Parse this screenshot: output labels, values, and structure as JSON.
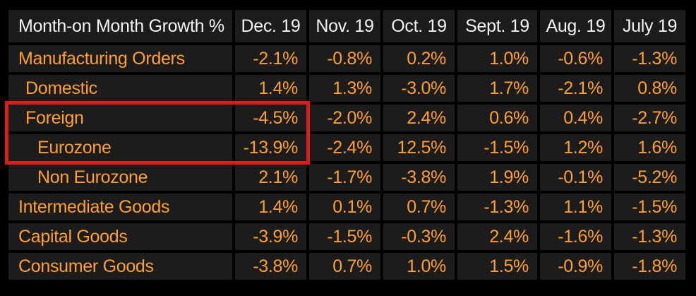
{
  "colors": {
    "page_bg": "#000000",
    "cell_bg": "#1c1c1c",
    "header_text": "#f2f2f2",
    "value_orange": "#ffa028",
    "highlight_red": "#e01b1b"
  },
  "chart_data": {
    "type": "table",
    "title": "Month-on Month Growth %",
    "columns": [
      "Dec. 19",
      "Nov. 19",
      "Oct. 19",
      "Sept. 19",
      "Aug. 19",
      "July 19"
    ],
    "rows": [
      {
        "label": "Manufacturing Orders",
        "indent": 0,
        "values": [
          "-2.1%",
          "-0.8%",
          "0.2%",
          "1.0%",
          "-0.6%",
          "-1.3%"
        ]
      },
      {
        "label": "Domestic",
        "indent": 1,
        "values": [
          "1.4%",
          "1.3%",
          "-3.0%",
          "1.7%",
          "-2.1%",
          "0.8%"
        ]
      },
      {
        "label": "Foreign",
        "indent": 1,
        "values": [
          "-4.5%",
          "-2.0%",
          "2.4%",
          "0.6%",
          "0.4%",
          "-2.7%"
        ]
      },
      {
        "label": "Eurozone",
        "indent": 2,
        "values": [
          "-13.9%",
          "-2.4%",
          "12.5%",
          "-1.5%",
          "1.2%",
          "1.6%"
        ]
      },
      {
        "label": "Non Eurozone",
        "indent": 2,
        "values": [
          "2.1%",
          "-1.7%",
          "-3.8%",
          "1.9%",
          "-0.1%",
          "-5.2%"
        ]
      },
      {
        "label": "Intermediate Goods",
        "indent": 0,
        "values": [
          "1.4%",
          "0.1%",
          "0.7%",
          "-1.3%",
          "1.1%",
          "-1.5%"
        ]
      },
      {
        "label": "Capital Goods",
        "indent": 0,
        "values": [
          "-3.9%",
          "-1.5%",
          "-0.3%",
          "2.4%",
          "-1.6%",
          "-1.3%"
        ]
      },
      {
        "label": "Consumer Goods",
        "indent": 0,
        "values": [
          "-3.8%",
          "0.7%",
          "1.0%",
          "1.5%",
          "-0.9%",
          "-1.8%"
        ]
      }
    ],
    "highlight": {
      "highlighted_rows": [
        "Foreign",
        "Eurozone"
      ],
      "highlighted_columns": [
        "row-label",
        "Dec. 19"
      ],
      "color": "#e01b1b"
    }
  }
}
